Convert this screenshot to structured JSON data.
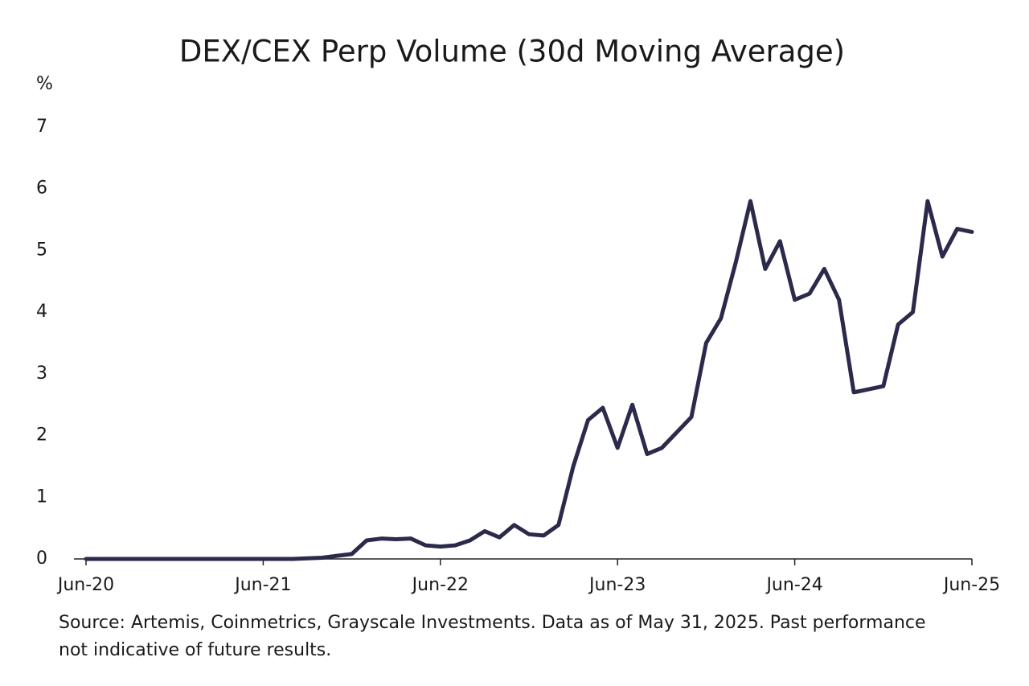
{
  "chart_data": {
    "type": "line",
    "title": "DEX/CEX Perp Volume (30d Moving Average)",
    "y_label": "%",
    "note": "Source: Artemis, Coinmetrics, Grayscale Investments. Data as of May 31, 2025. Past performance not indicative of future results.",
    "categories": [
      "Jun-20",
      null,
      null,
      null,
      null,
      null,
      null,
      null,
      null,
      null,
      null,
      null,
      "Jun-21",
      null,
      null,
      null,
      null,
      null,
      null,
      null,
      null,
      null,
      null,
      null,
      "Jun-22",
      null,
      null,
      null,
      null,
      null,
      null,
      null,
      null,
      null,
      null,
      null,
      "Jun-23",
      null,
      null,
      null,
      null,
      null,
      null,
      null,
      null,
      null,
      null,
      null,
      "Jun-24",
      null,
      null,
      null,
      null,
      null,
      null,
      null,
      null,
      null,
      null,
      null,
      "Jun-25"
    ],
    "series": [
      {
        "name": "DEX/CEX Perp Volume",
        "color": "#2b2a4a",
        "values": [
          0,
          0,
          0,
          0,
          0,
          0,
          0,
          0,
          0,
          0,
          0,
          0,
          0,
          0,
          0,
          0.01,
          0.02,
          0.05,
          0.08,
          0.3,
          0.33,
          0.32,
          0.33,
          0.22,
          0.2,
          0.22,
          0.3,
          0.45,
          0.35,
          0.55,
          0.4,
          0.38,
          0.55,
          1.5,
          2.25,
          2.45,
          1.8,
          2.5,
          1.7,
          1.8,
          2.05,
          2.3,
          3.5,
          3.9,
          4.8,
          5.8,
          4.7,
          5.15,
          4.2,
          4.3,
          4.7,
          4.2,
          2.7,
          2.75,
          2.8,
          3.8,
          4.0,
          5.8,
          4.9,
          5.35,
          5.3
        ]
      }
    ],
    "ylim": [
      0,
      7
    ],
    "yticks": [
      0,
      1,
      2,
      3,
      4,
      5,
      6,
      7
    ],
    "grid": false
  }
}
